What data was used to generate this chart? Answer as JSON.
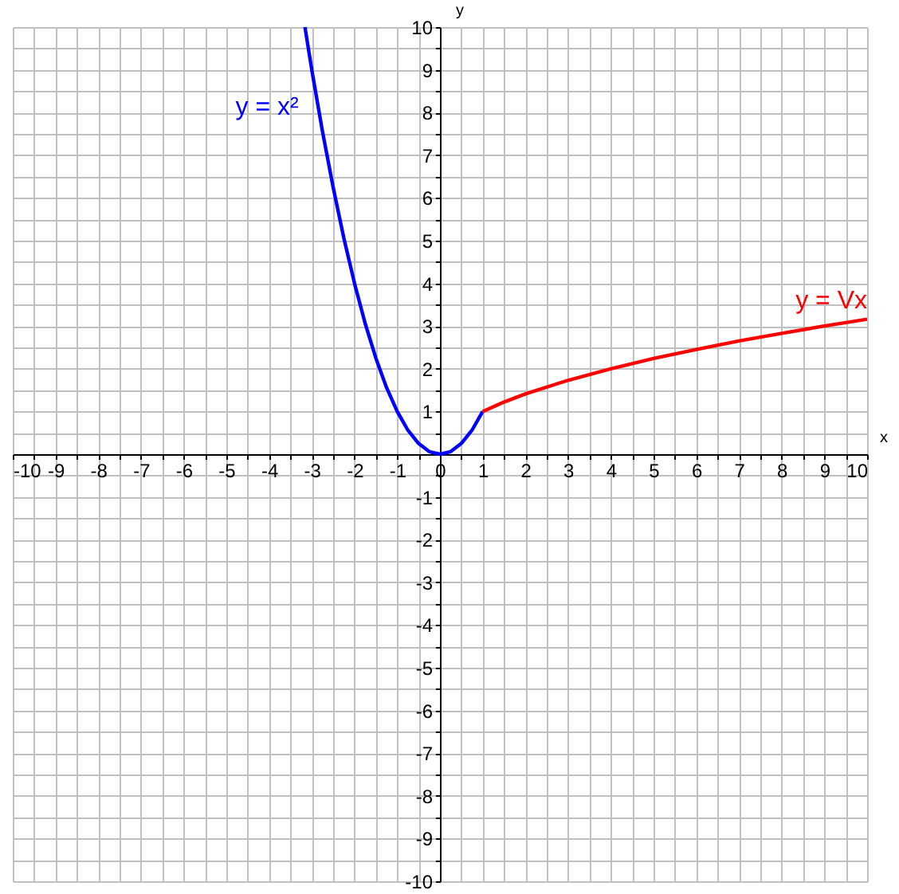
{
  "chart_data": {
    "type": "line",
    "xlabel": "x",
    "ylabel": "y",
    "series": [
      {
        "name": "y = x²",
        "color": "#0000ff",
        "x": [
          -3.16,
          -3,
          -2.75,
          -2.5,
          -2.25,
          -2,
          -1.75,
          -1.5,
          -1.25,
          -1,
          -0.75,
          -0.5,
          -0.25,
          0,
          0.25,
          0.5,
          0.75,
          1
        ],
        "values": [
          10,
          9,
          7.56,
          6.25,
          5.06,
          4,
          3.06,
          2.25,
          1.56,
          1,
          0.56,
          0.25,
          0.06,
          0,
          0.06,
          0.25,
          0.56,
          1
        ]
      },
      {
        "name": "y = Vx",
        "color": "#ff0000",
        "x": [
          1,
          1.5,
          2,
          3,
          4,
          5,
          6,
          7,
          8,
          9,
          10
        ],
        "values": [
          1,
          1.22,
          1.41,
          1.73,
          2,
          2.24,
          2.45,
          2.65,
          2.83,
          3,
          3.16
        ]
      }
    ],
    "xlim": [
      -10,
      10
    ],
    "ylim": [
      -10,
      10
    ],
    "xticks": [
      -10,
      {
        "value": -9.5,
        "label": null
      },
      -9,
      {
        "value": -8.5,
        "label": null
      },
      -8,
      {
        "value": -7.5,
        "label": null
      },
      -7,
      {
        "value": -6.5,
        "label": null
      },
      -6,
      {
        "value": -5.5,
        "label": null
      },
      -5,
      {
        "value": -4.5,
        "label": null
      },
      -4,
      {
        "value": -3.5,
        "label": null
      },
      -3,
      {
        "value": -2.5,
        "label": null
      },
      -2,
      {
        "value": -1.5,
        "label": null
      },
      -1,
      {
        "value": -0.5,
        "label": null
      },
      0,
      {
        "value": 0.5,
        "label": null
      },
      1,
      {
        "value": 1.5,
        "label": null
      },
      2,
      {
        "value": 2.5,
        "label": null
      },
      3,
      {
        "value": 3.5,
        "label": null
      },
      4,
      {
        "value": 4.5,
        "label": null
      },
      5,
      {
        "value": 5.5,
        "label": null
      },
      6,
      {
        "value": 6.5,
        "label": null
      },
      7,
      {
        "value": 7.5,
        "label": null
      },
      8,
      {
        "value": 8.5,
        "label": null
      },
      9,
      {
        "value": 9.5,
        "label": null
      },
      10
    ],
    "yticks": [
      -10,
      {
        "value": -9.5,
        "label": null
      },
      -9,
      {
        "value": -8.5,
        "label": null
      },
      -8,
      {
        "value": -7.5,
        "label": null
      },
      -7,
      {
        "value": -6.5,
        "label": null
      },
      -6,
      {
        "value": -5.5,
        "label": null
      },
      -5,
      {
        "value": -4.5,
        "label": null
      },
      -4,
      {
        "value": -3.5,
        "label": null
      },
      -3,
      {
        "value": -2.5,
        "label": null
      },
      -2,
      {
        "value": -1.5,
        "label": null
      },
      -1,
      {
        "value": -0.5,
        "label": null
      },
      {
        "value": 0,
        "label": null
      },
      {
        "value": 0.5,
        "label": null
      },
      1,
      {
        "value": 1.5,
        "label": null
      },
      2,
      {
        "value": 2.5,
        "label": null
      },
      3,
      {
        "value": 3.5,
        "label": null
      },
      4,
      {
        "value": 4.5,
        "label": null
      },
      5,
      {
        "value": 5.5,
        "label": null
      },
      6,
      {
        "value": 6.5,
        "label": null
      },
      7,
      {
        "value": 7.5,
        "label": null
      },
      8,
      {
        "value": 8.5,
        "label": null
      },
      9,
      {
        "value": 9.5,
        "label": null
      },
      10
    ],
    "grid": true
  }
}
